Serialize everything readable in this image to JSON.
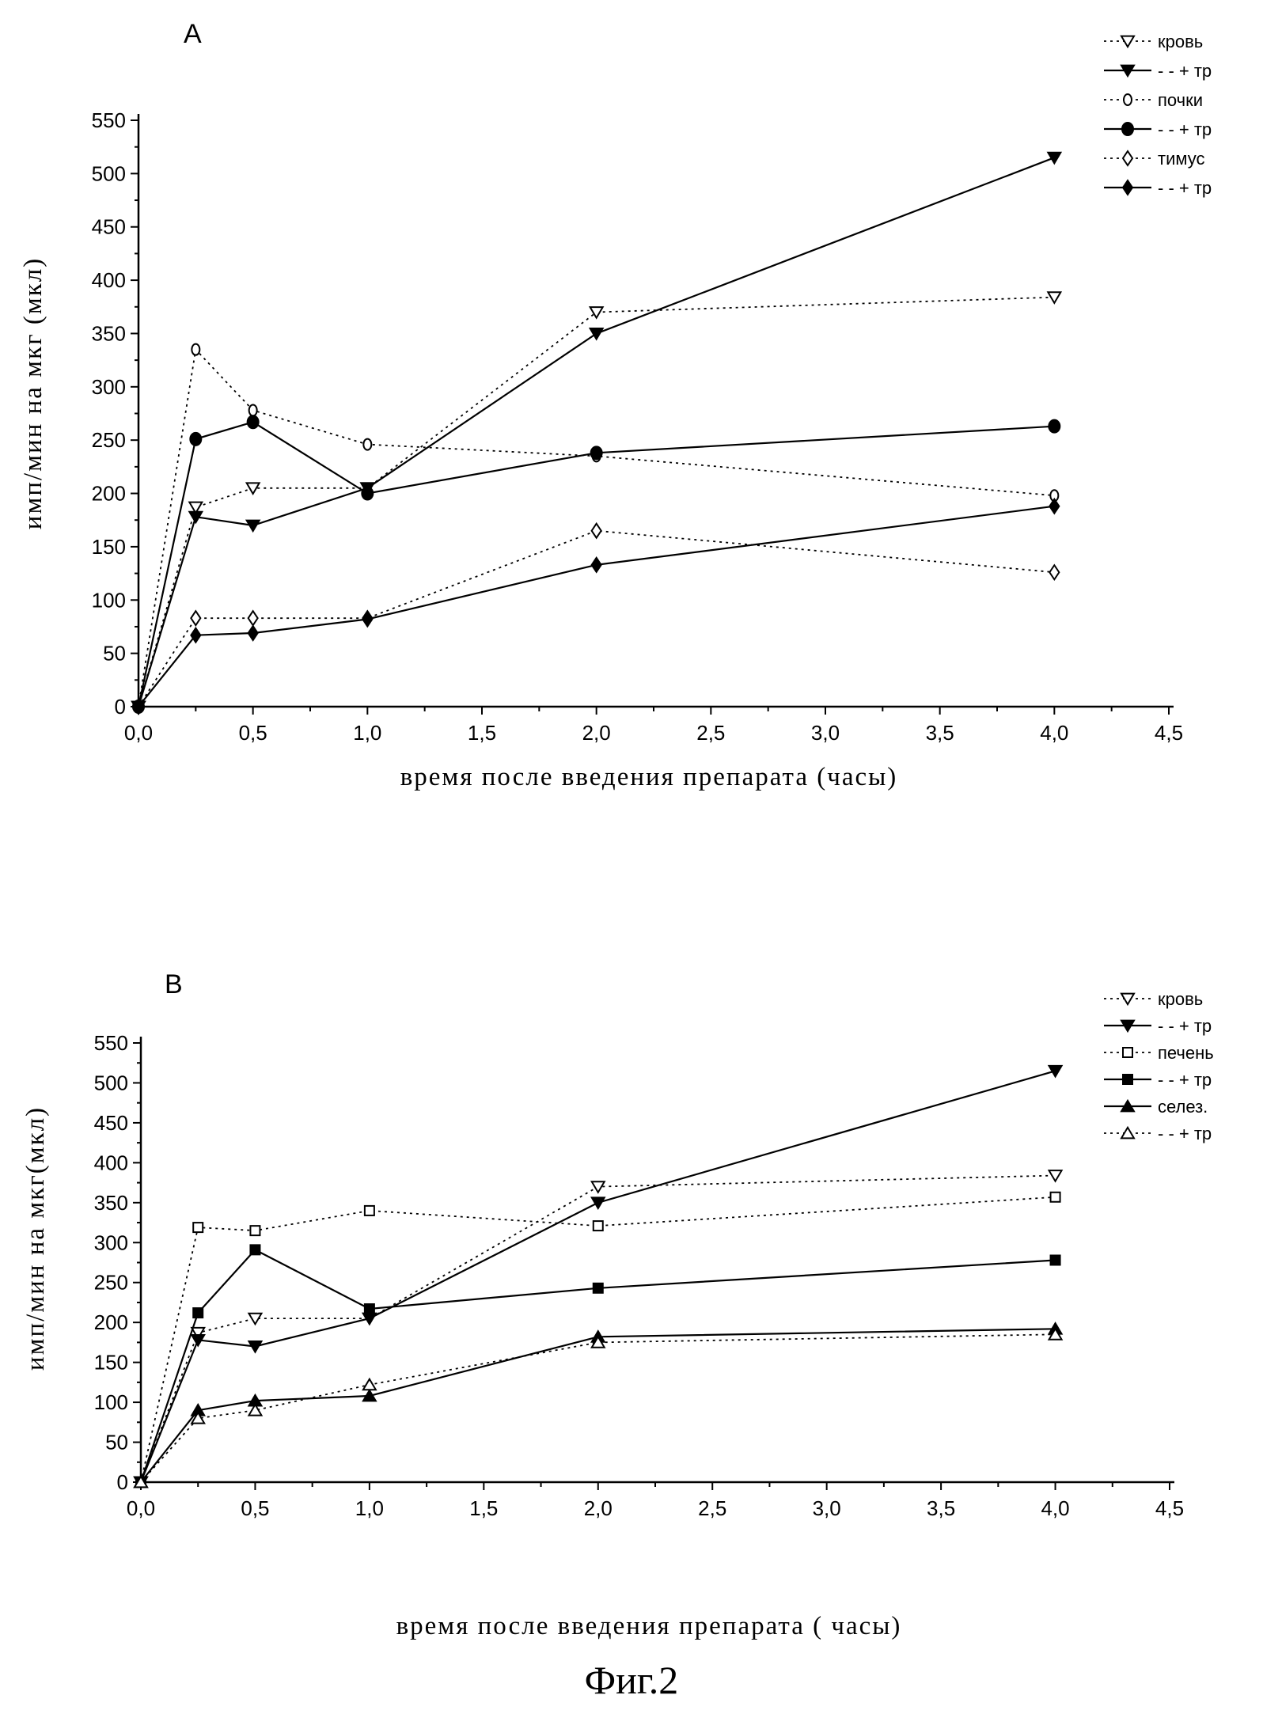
{
  "figure_caption": "Фиг.2",
  "chart_data": [
    {
      "type": "line",
      "panel": "A",
      "xlabel": "время после введения препарата (часы)",
      "ylabel": "имп/мин на мкг (мкл)",
      "xlim": [
        0,
        4.5
      ],
      "ylim": [
        0,
        550
      ],
      "x_ticks": [
        0,
        0.5,
        1.0,
        1.5,
        2.0,
        2.5,
        3.0,
        3.5,
        4.0,
        4.5
      ],
      "x_tick_labels": [
        "0,0",
        "0,5",
        "1,0",
        "1,5",
        "2,0",
        "2,5",
        "3,0",
        "3,5",
        "4,0",
        "4,5"
      ],
      "y_ticks": [
        0,
        50,
        100,
        150,
        200,
        250,
        300,
        350,
        400,
        450,
        500,
        550
      ],
      "grid": false,
      "legend_position": "top-right",
      "series": [
        {
          "name": "кровь",
          "marker": "triangle-down-open",
          "line": "dotted",
          "x": [
            0,
            0.25,
            0.5,
            1.0,
            2.0,
            4.0
          ],
          "values": [
            0,
            187,
            205,
            205,
            370,
            384
          ]
        },
        {
          "name": "- - + тр",
          "marker": "triangle-down-filled",
          "line": "solid",
          "x": [
            0,
            0.25,
            0.5,
            1.0,
            2.0,
            4.0
          ],
          "values": [
            0,
            178,
            170,
            205,
            350,
            515
          ]
        },
        {
          "name": "почки",
          "marker": "circle-open",
          "line": "dotted",
          "x": [
            0,
            0.25,
            0.5,
            1.0,
            2.0,
            4.0
          ],
          "values": [
            0,
            335,
            278,
            246,
            235,
            198
          ]
        },
        {
          "name": "- - + тр",
          "marker": "circle-filled",
          "line": "solid",
          "x": [
            0,
            0.25,
            0.5,
            1.0,
            2.0,
            4.0
          ],
          "values": [
            0,
            251,
            267,
            200,
            238,
            263
          ]
        },
        {
          "name": "тимус",
          "marker": "diamond-open",
          "line": "dotted",
          "x": [
            0,
            0.25,
            0.5,
            1.0,
            2.0,
            4.0
          ],
          "values": [
            0,
            83,
            83,
            83,
            165,
            126
          ]
        },
        {
          "name": "- - + тр",
          "marker": "diamond-filled",
          "line": "solid",
          "x": [
            0,
            0.25,
            0.5,
            1.0,
            2.0,
            4.0
          ],
          "values": [
            0,
            67,
            69,
            82,
            133,
            188
          ]
        }
      ]
    },
    {
      "type": "line",
      "panel": "B",
      "xlabel": "время после введения препарата ( часы)",
      "ylabel": "имп/мин на мкг(мкл)",
      "xlim": [
        0,
        4.5
      ],
      "ylim": [
        0,
        550
      ],
      "x_ticks": [
        0,
        0.5,
        1.0,
        1.5,
        2.0,
        2.5,
        3.0,
        3.5,
        4.0,
        4.5
      ],
      "x_tick_labels": [
        "0,0",
        "0,5",
        "1,0",
        "1,5",
        "2,0",
        "2,5",
        "3,0",
        "3,5",
        "4,0",
        "4,5"
      ],
      "y_ticks": [
        0,
        50,
        100,
        150,
        200,
        250,
        300,
        350,
        400,
        450,
        500,
        550
      ],
      "grid": false,
      "legend_position": "top-right",
      "series": [
        {
          "name": "кровь",
          "marker": "triangle-down-open",
          "line": "dotted",
          "x": [
            0,
            0.25,
            0.5,
            1.0,
            2.0,
            4.0
          ],
          "values": [
            0,
            187,
            205,
            205,
            370,
            384
          ]
        },
        {
          "name": "- - + тр",
          "marker": "triangle-down-filled",
          "line": "solid",
          "x": [
            0,
            0.25,
            0.5,
            1.0,
            2.0,
            4.0
          ],
          "values": [
            0,
            178,
            170,
            205,
            350,
            515
          ]
        },
        {
          "name": "печень",
          "marker": "square-open",
          "line": "dotted",
          "x": [
            0,
            0.25,
            0.5,
            1.0,
            2.0,
            4.0
          ],
          "values": [
            0,
            319,
            315,
            340,
            321,
            357
          ]
        },
        {
          "name": "- - + тр",
          "marker": "square-filled",
          "line": "solid",
          "x": [
            0,
            0.25,
            0.5,
            1.0,
            2.0,
            4.0
          ],
          "values": [
            0,
            212,
            291,
            217,
            243,
            278
          ]
        },
        {
          "name": "селез.",
          "marker": "triangle-up-filled",
          "line": "solid",
          "x": [
            0,
            0.25,
            0.5,
            1.0,
            2.0,
            4.0
          ],
          "values": [
            0,
            90,
            102,
            108,
            182,
            192
          ]
        },
        {
          "name": "- - + тр",
          "marker": "triangle-up-open",
          "line": "dotted",
          "x": [
            0,
            0.25,
            0.5,
            1.0,
            2.0,
            4.0
          ],
          "values": [
            0,
            80,
            90,
            122,
            175,
            185
          ]
        }
      ]
    }
  ]
}
